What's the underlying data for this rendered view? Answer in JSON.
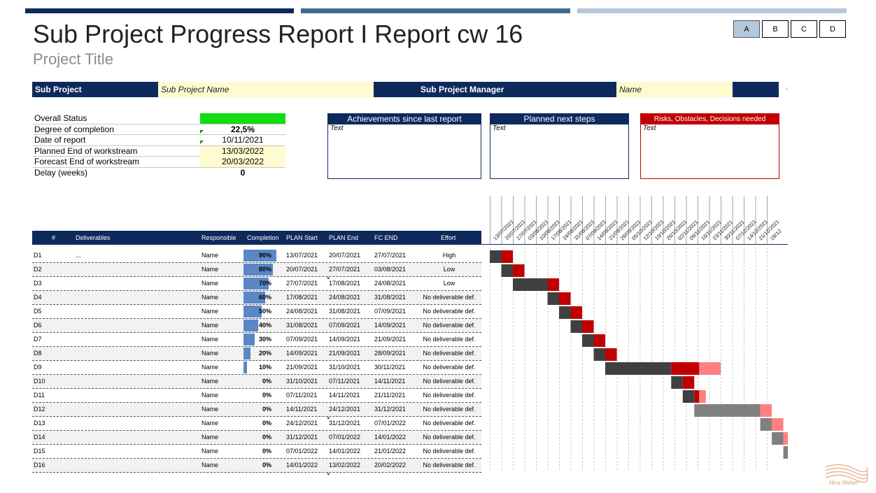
{
  "header": {
    "title": "Sub Project Progress Report I Report cw 16",
    "subtitle": "Project Title",
    "versions": [
      "A",
      "B",
      "C",
      "D"
    ],
    "active_version": "A"
  },
  "project_bar": {
    "sub_project_label": "Sub Project",
    "sub_project_value": "Sub Project Name",
    "manager_label": "Sub Project Manager",
    "manager_value": "Name"
  },
  "status": {
    "overall_label": "Overall Status",
    "overall_color": "#11dd11",
    "completion_label": "Degree of completion",
    "completion_value": "22,5%",
    "report_date_label": "Date of report",
    "report_date_value": "10/11/2021",
    "planned_end_label": "Planned End of workstream",
    "planned_end_value": "13/03/2022",
    "forecast_end_label": "Forecast End of workstream",
    "forecast_end_value": "20/03/2022",
    "delay_label": "Delay (weeks)",
    "delay_value": "0"
  },
  "boxes": {
    "achievements_title": "Achievements since last report",
    "achievements_text": "Text",
    "next_steps_title": "Planned next steps",
    "next_steps_text": "Text",
    "risks_title": "Risks, Obstacles, Decisions needed",
    "risks_text": "Text"
  },
  "table": {
    "columns": [
      "#",
      "Deliverables",
      "Responsible",
      "Completion",
      "PLAN Start",
      "PLAN End",
      "FC END",
      "Effort"
    ],
    "rows": [
      {
        "id": "D1",
        "deliverable": "...",
        "responsible": "Name",
        "completion": 90,
        "completion_label": "90%",
        "plan_start": "13/07/2021",
        "plan_end": "20/07/2021",
        "fc_end": "27/07/2021",
        "effort": "High"
      },
      {
        "id": "D2",
        "deliverable": "",
        "responsible": "Name",
        "completion": 80,
        "completion_label": "80%",
        "plan_start": "20/07/2021",
        "plan_end": "27/07/2021",
        "fc_end": "03/08/2021",
        "effort": "Low"
      },
      {
        "id": "D3",
        "deliverable": "",
        "responsible": "Name",
        "completion": 70,
        "completion_label": "70%",
        "plan_start": "27/07/2021",
        "plan_end": "17/08/2021",
        "fc_end": "24/08/2021",
        "effort": "Low"
      },
      {
        "id": "D4",
        "deliverable": "",
        "responsible": "Name",
        "completion": 60,
        "completion_label": "60%",
        "plan_start": "17/08/2021",
        "plan_end": "24/08/2021",
        "fc_end": "31/08/2021",
        "effort": "No deliverable def."
      },
      {
        "id": "D5",
        "deliverable": "",
        "responsible": "Name",
        "completion": 50,
        "completion_label": "50%",
        "plan_start": "24/08/2021",
        "plan_end": "31/08/2021",
        "fc_end": "07/09/2021",
        "effort": "No deliverable def."
      },
      {
        "id": "D6",
        "deliverable": "",
        "responsible": "Name",
        "completion": 40,
        "completion_label": "40%",
        "plan_start": "31/08/2021",
        "plan_end": "07/09/2021",
        "fc_end": "14/09/2021",
        "effort": "No deliverable def."
      },
      {
        "id": "D7",
        "deliverable": "",
        "responsible": "Name",
        "completion": 30,
        "completion_label": "30%",
        "plan_start": "07/09/2021",
        "plan_end": "14/09/2021",
        "fc_end": "21/09/2021",
        "effort": "No deliverable def."
      },
      {
        "id": "D8",
        "deliverable": "",
        "responsible": "Name",
        "completion": 20,
        "completion_label": "20%",
        "plan_start": "14/09/2021",
        "plan_end": "21/09/2021",
        "fc_end": "28/09/2021",
        "effort": "No deliverable def."
      },
      {
        "id": "D9",
        "deliverable": "",
        "responsible": "Name",
        "completion": 10,
        "completion_label": "10%",
        "plan_start": "21/09/2021",
        "plan_end": "31/10/2021",
        "fc_end": "30/11/2021",
        "effort": "No deliverable def."
      },
      {
        "id": "D10",
        "deliverable": "",
        "responsible": "Name",
        "completion": 0,
        "completion_label": "0%",
        "plan_start": "31/10/2021",
        "plan_end": "07/11/2021",
        "fc_end": "14/11/2021",
        "effort": "No deliverable def."
      },
      {
        "id": "D11",
        "deliverable": "",
        "responsible": "Name",
        "completion": 0,
        "completion_label": "0%",
        "plan_start": "07/11/2021",
        "plan_end": "14/11/2021",
        "fc_end": "21/11/2021",
        "effort": "No deliverable def."
      },
      {
        "id": "D12",
        "deliverable": "",
        "responsible": "Name",
        "completion": 0,
        "completion_label": "0%",
        "plan_start": "14/11/2021",
        "plan_end": "24/12/2021",
        "fc_end": "31/12/2021",
        "effort": "No deliverable def."
      },
      {
        "id": "D13",
        "deliverable": "",
        "responsible": "Name",
        "completion": 0,
        "completion_label": "0%",
        "plan_start": "24/12/2021",
        "plan_end": "31/12/2021",
        "fc_end": "07/01/2022",
        "effort": "No deliverable def."
      },
      {
        "id": "D14",
        "deliverable": "",
        "responsible": "Name",
        "completion": 0,
        "completion_label": "0%",
        "plan_start": "31/12/2021",
        "plan_end": "07/01/2022",
        "fc_end": "14/01/2022",
        "effort": "No deliverable def."
      },
      {
        "id": "D15",
        "deliverable": "",
        "responsible": "Name",
        "completion": 0,
        "completion_label": "0%",
        "plan_start": "07/01/2022",
        "plan_end": "14/01/2022",
        "fc_end": "21/01/2022",
        "effort": "No deliverable def."
      },
      {
        "id": "D16",
        "deliverable": "",
        "responsible": "Name",
        "completion": 0,
        "completion_label": "0%",
        "plan_start": "14/01/2022",
        "plan_end": "13/02/2022",
        "fc_end": "20/02/2022",
        "effort": "No deliverable def."
      }
    ]
  },
  "gantt": {
    "week_labels": [
      "13/07/2021",
      "20/07/2021",
      "27/07/2021",
      "03/08/2021",
      "10/08/2021",
      "17/08/2021",
      "24/08/2021",
      "31/08/2021",
      "07/09/2021",
      "14/09/2021",
      "21/09/2021",
      "28/09/2021",
      "05/10/2021",
      "12/10/2021",
      "19/10/2021",
      "26/10/2021",
      "02/11/2021",
      "09/11/2021",
      "16/11/2021",
      "23/11/2021",
      "30/11/2021",
      "07/12/2021",
      "14/12/2021",
      "21/12/2021",
      "28/12"
    ],
    "colors": {
      "plan_past": "#404040",
      "plan_future": "#808080",
      "delay_past": "#c00000",
      "delay_future": "#ff8080"
    }
  },
  "footer": {
    "brand": "Nina Weber",
    "brand_color": "#e0a080"
  }
}
